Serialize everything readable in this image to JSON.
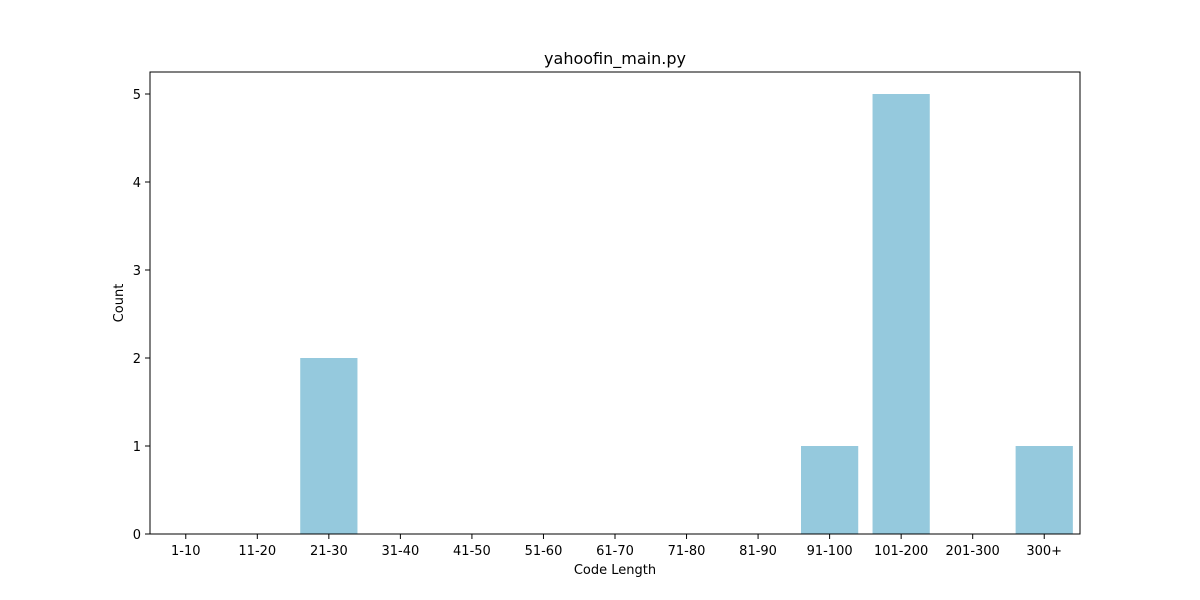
{
  "chart_data": {
    "type": "bar",
    "title": "yahoofin_main.py",
    "xlabel": "Code Length",
    "ylabel": "Count",
    "categories": [
      "1-10",
      "11-20",
      "21-30",
      "31-40",
      "41-50",
      "51-60",
      "61-70",
      "71-80",
      "81-90",
      "91-100",
      "101-200",
      "201-300",
      "300+"
    ],
    "values": [
      0,
      0,
      2,
      0,
      0,
      0,
      0,
      0,
      0,
      1,
      5,
      0,
      1
    ],
    "ylim": [
      0,
      5.25
    ],
    "yticks": [
      0,
      1,
      2,
      3,
      4,
      5
    ],
    "bar_color": "#95c9dd",
    "grid": false,
    "legend": "none"
  }
}
